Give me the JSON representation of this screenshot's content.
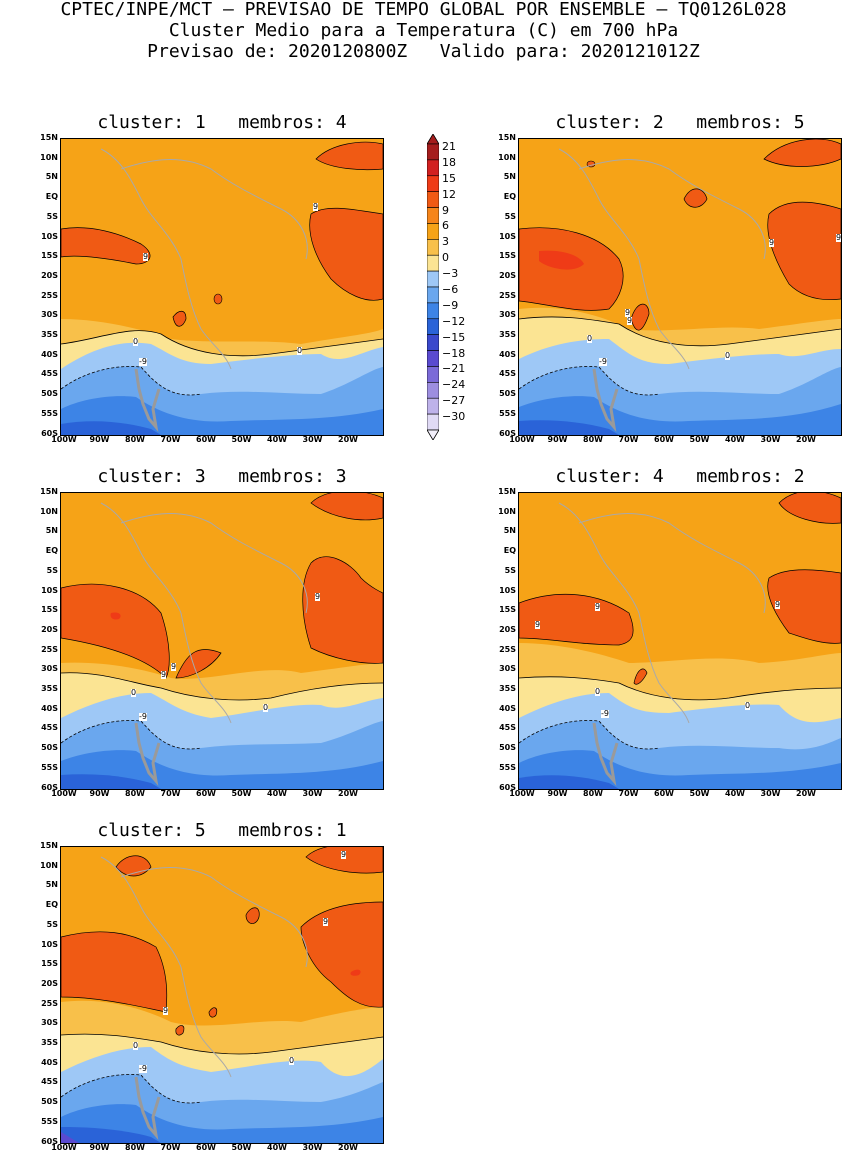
{
  "header": {
    "line1": "CPTEC/INPE/MCT — PREVISAO DE TEMPO GLOBAL POR ENSEMBLE — TQ0126L028",
    "line2": "Cluster Medio para a Temperatura (C) em 700 hPa",
    "line3": "Previsao de: 2020120800Z   Valido para: 2020121012Z"
  },
  "axes": {
    "lat_labels": [
      "15N",
      "10N",
      "5N",
      "EQ",
      "5S",
      "10S",
      "15S",
      "20S",
      "25S",
      "30S",
      "35S",
      "40S",
      "45S",
      "50S",
      "55S",
      "60S"
    ],
    "lon_labels": [
      "100W",
      "90W",
      "80W",
      "70W",
      "60W",
      "50W",
      "40W",
      "30W",
      "20W"
    ]
  },
  "colorbar": {
    "labels": [
      "21",
      "18",
      "15",
      "12",
      "9",
      "6",
      "3",
      "0",
      "-3",
      "-6",
      "-9",
      "-12",
      "-15",
      "-18",
      "-21",
      "-24",
      "-27",
      "-30"
    ],
    "colors": [
      "#a51d1d",
      "#d22020",
      "#ef3b17",
      "#f05a14",
      "#f6851a",
      "#f6a317",
      "#f8c04a",
      "#fbe493",
      "#9ec8f6",
      "#6aa7ee",
      "#3d84e6",
      "#2a63d8",
      "#3a48cc",
      "#5a4ad0",
      "#7b6ad8",
      "#9d8ee0",
      "#beb2ea",
      "#e0daf5"
    ]
  },
  "panels": [
    {
      "title": "cluster: 1   membros: 4",
      "contour_labels": [
        "9",
        "9",
        "0",
        "0",
        "-9"
      ]
    },
    {
      "title": "cluster: 2   membros: 5",
      "contour_labels": [
        "9",
        "9",
        "9",
        "9",
        "0",
        "0",
        "-9"
      ]
    },
    {
      "title": "cluster: 3   membros: 3",
      "contour_labels": [
        "9",
        "9",
        "9",
        "0",
        "0",
        "-9"
      ]
    },
    {
      "title": "cluster: 4   membros: 2",
      "contour_labels": [
        "9",
        "9",
        "9",
        "0",
        "0",
        "-9"
      ]
    },
    {
      "title": "cluster: 5   membros: 1",
      "contour_labels": [
        "9",
        "9",
        "9",
        "0",
        "0",
        "-9"
      ]
    }
  ]
}
